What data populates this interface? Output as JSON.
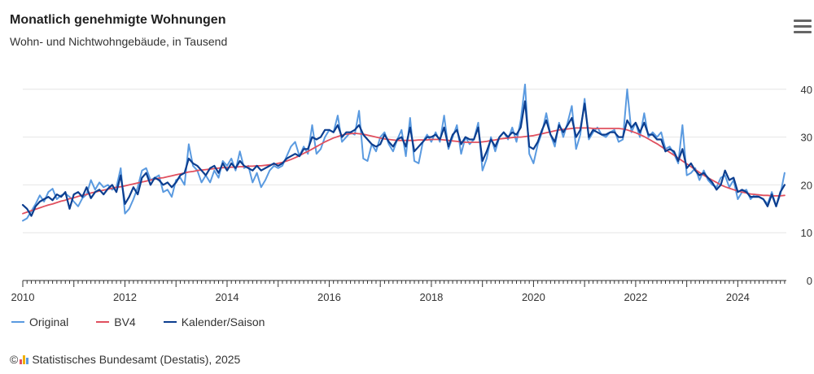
{
  "title": "Monatlich genehmigte Wohnungen",
  "subtitle": "Wohn- und Nichtwohngebäude, in Tausend",
  "credits": {
    "symbol": "©",
    "text": "Statistisches Bundesamt (Destatis), 2025"
  },
  "menu_icon": "hamburger-menu-icon",
  "colors": {
    "Original": "#5a9ae0",
    "BV4": "#e0505f",
    "Kalender/Saison": "#0c3e8f",
    "grid": "#e6e6e6",
    "axis": "#333333"
  },
  "chart_data": {
    "type": "line",
    "title": "Monatlich genehmigte Wohnungen",
    "subtitle": "Wohn- und Nichtwohngebäude, in Tausend",
    "xlabel": "",
    "ylabel": "",
    "x_ticks": [
      "2010",
      "2012",
      "2014",
      "2016",
      "2018",
      "2020",
      "2022",
      "2024"
    ],
    "y_ticks": [
      0,
      10,
      20,
      30,
      40
    ],
    "xlim": [
      2010,
      2024.95
    ],
    "ylim": [
      0,
      42
    ],
    "y_axis_position": "right",
    "grid": true,
    "legend_position": "bottom-left",
    "x_start_year": 2010,
    "x_end_year": 2024,
    "frequency": "monthly",
    "series": [
      {
        "name": "Original",
        "values": [
          12.5,
          13.0,
          14.5,
          16.0,
          17.8,
          16.5,
          18.5,
          19.2,
          17.0,
          17.8,
          18.2,
          17.5,
          16.5,
          15.5,
          17.2,
          18.0,
          21.0,
          19.0,
          20.5,
          19.5,
          20.0,
          19.0,
          19.5,
          23.5,
          14.0,
          15.0,
          17.0,
          19.5,
          23.0,
          23.5,
          21.0,
          21.5,
          22.0,
          18.5,
          19.0,
          17.5,
          21.0,
          21.5,
          20.0,
          28.5,
          24.0,
          23.0,
          20.5,
          22.0,
          20.5,
          23.0,
          21.5,
          25.0,
          24.0,
          25.5,
          23.0,
          27.0,
          23.5,
          24.0,
          20.5,
          22.5,
          19.5,
          21.0,
          23.0,
          24.0,
          23.5,
          24.0,
          26.0,
          28.0,
          29.0,
          26.0,
          28.0,
          26.5,
          32.5,
          26.5,
          27.5,
          30.0,
          31.5,
          31.0,
          34.5,
          29.0,
          30.0,
          31.0,
          30.5,
          35.5,
          25.5,
          25.0,
          28.5,
          27.0,
          30.0,
          31.0,
          28.5,
          27.0,
          29.5,
          31.5,
          26.0,
          34.0,
          25.0,
          24.5,
          29.0,
          30.5,
          29.0,
          31.0,
          29.0,
          34.5,
          27.5,
          30.0,
          32.5,
          26.5,
          30.0,
          28.5,
          29.5,
          33.0,
          23.0,
          25.5,
          30.0,
          27.0,
          30.0,
          31.0,
          29.5,
          32.0,
          29.0,
          33.5,
          41.0,
          26.5,
          24.5,
          28.5,
          31.0,
          35.0,
          30.5,
          28.0,
          33.0,
          30.0,
          33.0,
          36.5,
          27.5,
          30.5,
          38.0,
          29.5,
          31.0,
          32.0,
          30.5,
          30.0,
          31.0,
          31.5,
          29.0,
          29.5,
          40.0,
          31.0,
          33.0,
          30.0,
          35.0,
          30.0,
          31.0,
          30.0,
          31.0,
          27.5,
          28.0,
          26.5,
          24.5,
          32.5,
          22.0,
          22.5,
          23.5,
          21.0,
          23.0,
          21.0,
          20.0,
          19.5,
          21.5,
          22.0,
          19.5,
          21.0,
          17.0,
          18.5,
          19.0,
          17.0,
          18.0,
          17.5,
          17.0,
          16.0,
          18.5,
          15.5,
          18.0,
          22.5
        ]
      },
      {
        "name": "BV4",
        "values": [
          14.0,
          14.3,
          14.6,
          14.9,
          15.2,
          15.5,
          15.8,
          16.0,
          16.3,
          16.6,
          16.8,
          17.1,
          17.3,
          17.6,
          17.8,
          18.0,
          18.3,
          18.5,
          18.7,
          18.9,
          19.1,
          19.3,
          19.5,
          19.6,
          19.8,
          20.0,
          20.2,
          20.4,
          20.6,
          20.8,
          21.0,
          21.2,
          21.4,
          21.5,
          21.7,
          21.9,
          22.1,
          22.3,
          22.5,
          22.7,
          22.8,
          23.0,
          23.1,
          23.2,
          23.3,
          23.4,
          23.5,
          23.6,
          23.6,
          23.7,
          23.7,
          23.8,
          23.8,
          23.9,
          23.9,
          24.0,
          24.0,
          24.1,
          24.2,
          24.3,
          24.5,
          24.7,
          25.0,
          25.3,
          25.7,
          26.1,
          26.6,
          27.0,
          27.5,
          28.0,
          28.5,
          29.0,
          29.4,
          29.8,
          30.1,
          30.4,
          30.6,
          30.7,
          30.8,
          30.7,
          30.6,
          30.4,
          30.2,
          30.0,
          29.8,
          29.6,
          29.5,
          29.4,
          29.3,
          29.3,
          29.3,
          29.3,
          29.3,
          29.4,
          29.4,
          29.4,
          29.5,
          29.5,
          29.5,
          29.4,
          29.3,
          29.2,
          29.1,
          29.0,
          28.9,
          28.9,
          28.9,
          28.9,
          29.0,
          29.1,
          29.3,
          29.4,
          29.6,
          29.7,
          29.8,
          29.9,
          30.0,
          30.0,
          30.1,
          30.2,
          30.3,
          30.5,
          30.7,
          30.9,
          31.1,
          31.3,
          31.5,
          31.6,
          31.7,
          31.8,
          31.9,
          31.9,
          31.9,
          31.9,
          31.8,
          31.8,
          31.8,
          31.8,
          31.8,
          31.8,
          31.8,
          31.7,
          31.5,
          31.2,
          30.9,
          30.5,
          30.1,
          29.6,
          29.1,
          28.6,
          28.0,
          27.4,
          26.8,
          26.2,
          25.6,
          25.0,
          24.4,
          23.8,
          23.2,
          22.6,
          22.0,
          21.5,
          21.0,
          20.5,
          20.0,
          19.6,
          19.3,
          19.0,
          18.7,
          18.5,
          18.3,
          18.1,
          18.0,
          17.9,
          17.8,
          17.8,
          17.7,
          17.7,
          17.7,
          17.8
        ]
      },
      {
        "name": "Kalender/Saison",
        "values": [
          15.8,
          15.0,
          13.5,
          15.5,
          16.5,
          17.0,
          17.5,
          16.8,
          18.0,
          17.5,
          18.5,
          15.0,
          18.0,
          18.5,
          17.5,
          19.5,
          17.2,
          18.5,
          19.0,
          18.0,
          19.2,
          20.0,
          18.5,
          22.0,
          16.0,
          17.5,
          19.5,
          18.0,
          21.5,
          22.5,
          20.0,
          21.5,
          21.0,
          20.0,
          20.5,
          19.5,
          20.5,
          22.0,
          22.5,
          25.5,
          24.5,
          24.0,
          23.0,
          22.0,
          23.5,
          24.0,
          22.5,
          24.5,
          23.0,
          24.5,
          23.5,
          25.0,
          24.0,
          23.5,
          23.0,
          24.0,
          23.0,
          23.5,
          24.0,
          24.5,
          24.0,
          24.5,
          25.5,
          26.0,
          26.5,
          26.0,
          27.5,
          27.5,
          30.0,
          29.5,
          30.0,
          31.5,
          31.5,
          31.0,
          32.5,
          30.0,
          31.0,
          31.0,
          31.5,
          32.5,
          30.5,
          29.5,
          28.5,
          28.0,
          28.5,
          30.5,
          29.0,
          28.0,
          29.5,
          30.0,
          28.0,
          32.0,
          27.0,
          28.0,
          29.0,
          30.0,
          30.0,
          30.5,
          29.5,
          32.0,
          28.0,
          30.5,
          31.5,
          28.5,
          30.0,
          29.5,
          29.5,
          32.0,
          25.0,
          27.0,
          29.5,
          28.0,
          30.0,
          31.0,
          30.0,
          31.0,
          30.5,
          32.0,
          37.5,
          28.0,
          27.5,
          29.0,
          31.5,
          33.5,
          30.5,
          29.0,
          32.5,
          31.0,
          32.5,
          34.0,
          30.0,
          31.5,
          37.0,
          30.0,
          31.5,
          31.0,
          30.5,
          30.5,
          31.0,
          31.0,
          30.0,
          30.0,
          33.5,
          32.0,
          33.0,
          31.0,
          33.0,
          30.5,
          30.5,
          29.5,
          29.5,
          27.0,
          27.5,
          27.0,
          25.0,
          27.5,
          23.5,
          24.5,
          23.0,
          22.0,
          22.5,
          21.5,
          20.5,
          19.0,
          20.0,
          23.0,
          21.0,
          21.5,
          18.5,
          19.0,
          18.5,
          17.5,
          17.5,
          17.5,
          17.0,
          15.5,
          18.0,
          15.5,
          18.5,
          20.0
        ]
      }
    ]
  }
}
